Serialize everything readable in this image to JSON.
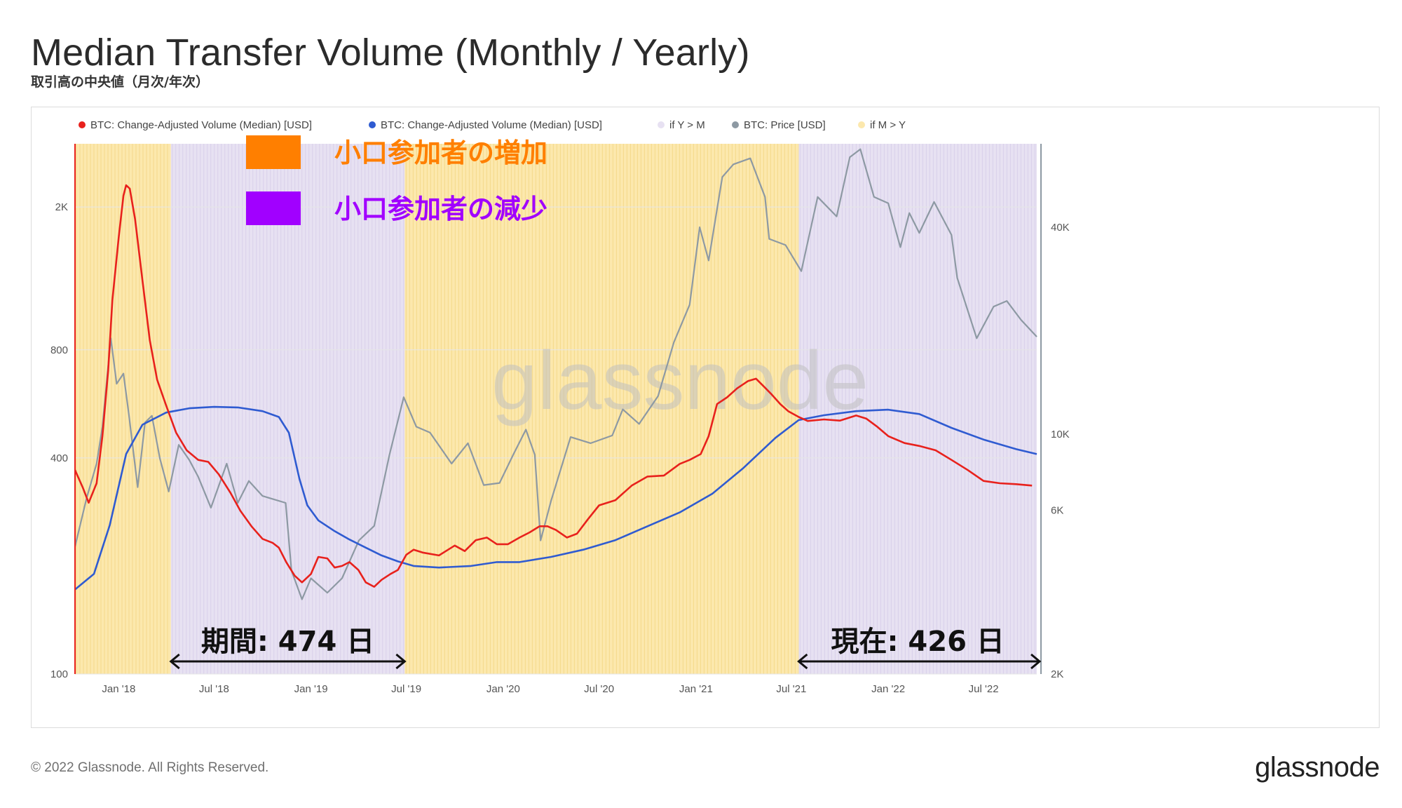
{
  "title": "Median Transfer Volume (Monthly / Yearly)",
  "subtitle": "取引高の中央値（月次/年次）",
  "footer": {
    "copyright": "© 2022 Glassnode. All Rights Reserved.",
    "logo": "glassnode"
  },
  "watermark": "glassnode",
  "legend": [
    {
      "label": "BTC: Change-Adjusted Volume (Median) [USD]",
      "color": "#e8211c"
    },
    {
      "label": "BTC: Change-Adjusted Volume (Median) [USD]",
      "color": "#2f5bd1"
    },
    {
      "label": "if Y > M",
      "color": "#e7e1f2"
    },
    {
      "label": "BTC: Price [USD]",
      "color": "#8d99a3"
    },
    {
      "label": "if M > Y",
      "color": "#fce8ad"
    }
  ],
  "annotations": {
    "box_legend": [
      {
        "label": "小口参加者の増加",
        "color": "#ff7f00"
      },
      {
        "label": "小口参加者の減少",
        "color": "#a100ff"
      }
    ],
    "period_label": "期間: 474 日",
    "current_label": "現在: 426 日"
  },
  "chart_data": {
    "type": "line",
    "x_ticks": [
      "Jan '18",
      "Jul '18",
      "Jan '19",
      "Jul '19",
      "Jan '20",
      "Jul '20",
      "Jan '21",
      "Jul '21",
      "Jan '22",
      "Jul '22"
    ],
    "x_tick_dates": [
      "2018-01-01",
      "2018-07-01",
      "2019-01-01",
      "2019-07-01",
      "2020-01-01",
      "2020-07-01",
      "2021-01-01",
      "2021-07-01",
      "2022-01-01",
      "2022-07-01"
    ],
    "x_range": [
      "2017-10-10",
      "2022-10-10"
    ],
    "y_left": {
      "scale": "log",
      "range": [
        100,
        3000
      ],
      "ticks": [
        "100",
        "400",
        "800",
        "2K"
      ],
      "tick_values": [
        100,
        400,
        800,
        2000
      ]
    },
    "y_right": {
      "scale": "log",
      "range": [
        2000,
        70000
      ],
      "ticks": [
        "2K",
        "6K",
        "10K",
        "40K"
      ],
      "tick_values": [
        2000,
        6000,
        10000,
        40000
      ]
    },
    "grid": true,
    "legend_position": "top-left",
    "regions": [
      {
        "label": "if M > Y",
        "start": "2017-10-10",
        "end": "2018-04-10"
      },
      {
        "label": "if Y > M",
        "start": "2018-04-10",
        "end": "2019-06-28"
      },
      {
        "label": "if M > Y",
        "start": "2019-06-28",
        "end": "2021-07-15"
      },
      {
        "label": "if Y > M",
        "start": "2021-07-15",
        "end": "2022-10-10"
      }
    ],
    "series": [
      {
        "name": "BTC: Change-Adjusted Volume (Median) [USD]",
        "axis": "left",
        "points": [
          [
            "2017-10-10",
            370
          ],
          [
            "2017-10-25",
            330
          ],
          [
            "2017-11-05",
            300
          ],
          [
            "2017-11-20",
            340
          ],
          [
            "2017-12-01",
            460
          ],
          [
            "2017-12-12",
            700
          ],
          [
            "2017-12-20",
            1100
          ],
          [
            "2018-01-01",
            1650
          ],
          [
            "2018-01-10",
            2150
          ],
          [
            "2018-01-15",
            2300
          ],
          [
            "2018-01-22",
            2250
          ],
          [
            "2018-02-01",
            1850
          ],
          [
            "2018-02-15",
            1250
          ],
          [
            "2018-03-01",
            850
          ],
          [
            "2018-03-15",
            660
          ],
          [
            "2018-04-01",
            560
          ],
          [
            "2018-04-20",
            470
          ],
          [
            "2018-05-10",
            420
          ],
          [
            "2018-06-01",
            395
          ],
          [
            "2018-06-20",
            390
          ],
          [
            "2018-07-10",
            360
          ],
          [
            "2018-08-01",
            320
          ],
          [
            "2018-08-20",
            285
          ],
          [
            "2018-09-10",
            258
          ],
          [
            "2018-10-01",
            238
          ],
          [
            "2018-10-20",
            232
          ],
          [
            "2018-11-01",
            225
          ],
          [
            "2018-11-15",
            205
          ],
          [
            "2018-12-01",
            188
          ],
          [
            "2018-12-15",
            180
          ],
          [
            "2019-01-01",
            190
          ],
          [
            "2019-01-15",
            212
          ],
          [
            "2019-02-01",
            210
          ],
          [
            "2019-02-15",
            198
          ],
          [
            "2019-03-01",
            200
          ],
          [
            "2019-03-15",
            205
          ],
          [
            "2019-04-01",
            195
          ],
          [
            "2019-04-15",
            180
          ],
          [
            "2019-05-01",
            175
          ],
          [
            "2019-05-15",
            183
          ],
          [
            "2019-06-01",
            190
          ],
          [
            "2019-06-15",
            195
          ],
          [
            "2019-07-01",
            215
          ],
          [
            "2019-07-15",
            222
          ],
          [
            "2019-08-01",
            218
          ],
          [
            "2019-09-01",
            214
          ],
          [
            "2019-10-01",
            228
          ],
          [
            "2019-10-20",
            220
          ],
          [
            "2019-11-10",
            236
          ],
          [
            "2019-12-01",
            240
          ],
          [
            "2019-12-20",
            230
          ],
          [
            "2020-01-10",
            230
          ],
          [
            "2020-02-01",
            240
          ],
          [
            "2020-02-20",
            248
          ],
          [
            "2020-03-10",
            258
          ],
          [
            "2020-03-25",
            258
          ],
          [
            "2020-04-10",
            252
          ],
          [
            "2020-05-01",
            240
          ],
          [
            "2020-05-20",
            246
          ],
          [
            "2020-06-10",
            270
          ],
          [
            "2020-07-01",
            295
          ],
          [
            "2020-08-01",
            305
          ],
          [
            "2020-09-01",
            335
          ],
          [
            "2020-10-01",
            355
          ],
          [
            "2020-11-01",
            357
          ],
          [
            "2020-12-01",
            385
          ],
          [
            "2020-12-20",
            395
          ],
          [
            "2021-01-10",
            410
          ],
          [
            "2021-01-25",
            460
          ],
          [
            "2021-02-10",
            565
          ],
          [
            "2021-03-01",
            590
          ],
          [
            "2021-03-20",
            625
          ],
          [
            "2021-04-10",
            655
          ],
          [
            "2021-04-25",
            665
          ],
          [
            "2021-05-10",
            632
          ],
          [
            "2021-05-25",
            600
          ],
          [
            "2021-06-10",
            565
          ],
          [
            "2021-06-25",
            540
          ],
          [
            "2021-07-15",
            520
          ],
          [
            "2021-08-01",
            507
          ],
          [
            "2021-09-01",
            512
          ],
          [
            "2021-10-01",
            508
          ],
          [
            "2021-11-01",
            525
          ],
          [
            "2021-11-20",
            515
          ],
          [
            "2021-12-10",
            490
          ],
          [
            "2022-01-01",
            460
          ],
          [
            "2022-02-01",
            440
          ],
          [
            "2022-03-01",
            432
          ],
          [
            "2022-04-01",
            420
          ],
          [
            "2022-05-01",
            395
          ],
          [
            "2022-06-01",
            370
          ],
          [
            "2022-07-01",
            345
          ],
          [
            "2022-08-01",
            340
          ],
          [
            "2022-09-01",
            338
          ],
          [
            "2022-10-01",
            335
          ]
        ]
      },
      {
        "name": "BTC: Change-Adjusted Volume (Median) [USD]",
        "axis": "left",
        "points": [
          [
            "2017-10-10",
            172
          ],
          [
            "2017-11-15",
            190
          ],
          [
            "2017-12-15",
            260
          ],
          [
            "2018-01-15",
            410
          ],
          [
            "2018-02-15",
            495
          ],
          [
            "2018-04-01",
            535
          ],
          [
            "2018-05-15",
            550
          ],
          [
            "2018-07-01",
            555
          ],
          [
            "2018-08-15",
            553
          ],
          [
            "2018-10-01",
            540
          ],
          [
            "2018-11-01",
            520
          ],
          [
            "2018-11-20",
            470
          ],
          [
            "2018-12-10",
            350
          ],
          [
            "2018-12-25",
            295
          ],
          [
            "2019-01-15",
            268
          ],
          [
            "2019-02-15",
            250
          ],
          [
            "2019-03-15",
            237
          ],
          [
            "2019-04-15",
            225
          ],
          [
            "2019-05-15",
            214
          ],
          [
            "2019-06-15",
            206
          ],
          [
            "2019-07-15",
            200
          ],
          [
            "2019-09-01",
            198
          ],
          [
            "2019-11-01",
            200
          ],
          [
            "2019-12-20",
            205
          ],
          [
            "2020-02-01",
            205
          ],
          [
            "2020-04-01",
            212
          ],
          [
            "2020-06-01",
            222
          ],
          [
            "2020-08-01",
            236
          ],
          [
            "2020-10-01",
            258
          ],
          [
            "2020-12-01",
            282
          ],
          [
            "2021-02-01",
            318
          ],
          [
            "2021-04-01",
            375
          ],
          [
            "2021-06-01",
            455
          ],
          [
            "2021-07-15",
            510
          ],
          [
            "2021-09-01",
            526
          ],
          [
            "2021-11-01",
            540
          ],
          [
            "2022-01-01",
            545
          ],
          [
            "2022-03-01",
            530
          ],
          [
            "2022-05-01",
            485
          ],
          [
            "2022-07-01",
            450
          ],
          [
            "2022-09-01",
            423
          ],
          [
            "2022-10-10",
            410
          ]
        ]
      },
      {
        "name": "BTC: Price [USD]",
        "axis": "right",
        "points": [
          [
            "2017-10-10",
            4700
          ],
          [
            "2017-11-01",
            6500
          ],
          [
            "2017-11-20",
            8200
          ],
          [
            "2017-12-01",
            10500
          ],
          [
            "2017-12-17",
            19000
          ],
          [
            "2017-12-28",
            14000
          ],
          [
            "2018-01-10",
            15000
          ],
          [
            "2018-01-20",
            11500
          ],
          [
            "2018-02-06",
            7000
          ],
          [
            "2018-02-20",
            10800
          ],
          [
            "2018-03-05",
            11300
          ],
          [
            "2018-03-20",
            8500
          ],
          [
            "2018-04-06",
            6800
          ],
          [
            "2018-04-25",
            9300
          ],
          [
            "2018-05-15",
            8400
          ],
          [
            "2018-06-01",
            7500
          ],
          [
            "2018-06-25",
            6100
          ],
          [
            "2018-07-25",
            8200
          ],
          [
            "2018-08-15",
            6300
          ],
          [
            "2018-09-05",
            7300
          ],
          [
            "2018-10-01",
            6600
          ],
          [
            "2018-11-14",
            6300
          ],
          [
            "2018-11-25",
            4000
          ],
          [
            "2018-12-15",
            3300
          ],
          [
            "2019-01-01",
            3800
          ],
          [
            "2019-02-01",
            3450
          ],
          [
            "2019-03-01",
            3800
          ],
          [
            "2019-04-02",
            4900
          ],
          [
            "2019-05-01",
            5400
          ],
          [
            "2019-05-30",
            8700
          ],
          [
            "2019-06-26",
            12800
          ],
          [
            "2019-07-20",
            10500
          ],
          [
            "2019-08-15",
            10100
          ],
          [
            "2019-09-25",
            8200
          ],
          [
            "2019-10-26",
            9400
          ],
          [
            "2019-11-25",
            7100
          ],
          [
            "2019-12-25",
            7200
          ],
          [
            "2020-01-20",
            8700
          ],
          [
            "2020-02-13",
            10300
          ],
          [
            "2020-03-01",
            8700
          ],
          [
            "2020-03-12",
            4900
          ],
          [
            "2020-04-01",
            6400
          ],
          [
            "2020-05-08",
            9800
          ],
          [
            "2020-06-15",
            9400
          ],
          [
            "2020-07-26",
            9900
          ],
          [
            "2020-08-15",
            11800
          ],
          [
            "2020-09-15",
            10700
          ],
          [
            "2020-10-21",
            12900
          ],
          [
            "2020-11-20",
            18500
          ],
          [
            "2020-12-20",
            23800
          ],
          [
            "2021-01-08",
            40000
          ],
          [
            "2021-01-25",
            32000
          ],
          [
            "2021-02-20",
            56000
          ],
          [
            "2021-03-13",
            61000
          ],
          [
            "2021-04-14",
            63500
          ],
          [
            "2021-05-12",
            49000
          ],
          [
            "2021-05-20",
            37000
          ],
          [
            "2021-06-20",
            35500
          ],
          [
            "2021-07-20",
            29800
          ],
          [
            "2021-08-20",
            49000
          ],
          [
            "2021-09-25",
            43000
          ],
          [
            "2021-10-20",
            64000
          ],
          [
            "2021-11-09",
            67500
          ],
          [
            "2021-12-05",
            49000
          ],
          [
            "2022-01-01",
            47000
          ],
          [
            "2022-01-24",
            35000
          ],
          [
            "2022-02-10",
            44000
          ],
          [
            "2022-03-01",
            38500
          ],
          [
            "2022-03-29",
            47400
          ],
          [
            "2022-05-01",
            38000
          ],
          [
            "2022-05-12",
            28500
          ],
          [
            "2022-06-18",
            19000
          ],
          [
            "2022-07-20",
            23500
          ],
          [
            "2022-08-14",
            24400
          ],
          [
            "2022-09-10",
            21500
          ],
          [
            "2022-10-10",
            19200
          ]
        ]
      }
    ]
  }
}
